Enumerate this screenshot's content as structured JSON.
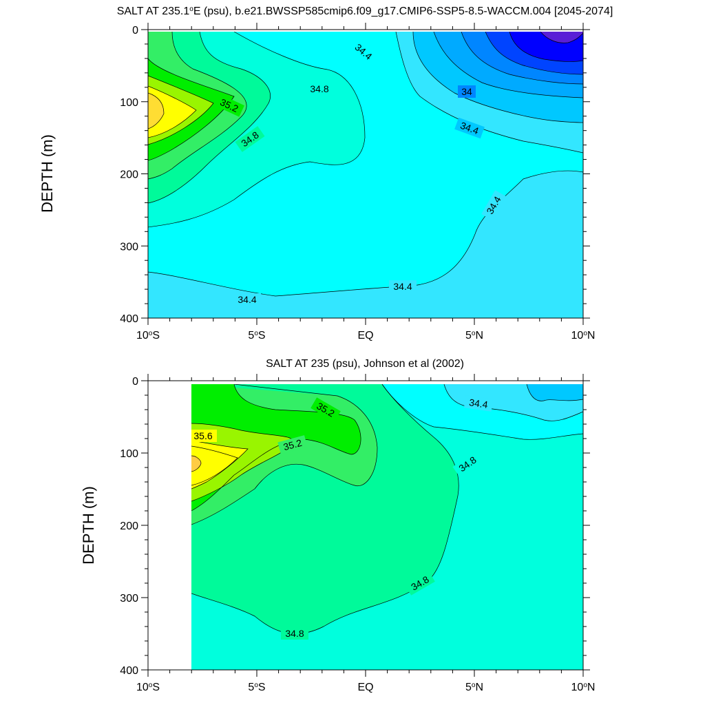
{
  "chart_data": [
    {
      "type": "contour",
      "title_html": "SALT AT 235.1°E (psu), b.e21.BWSSP585cmip6.f09_g17.CMIP6-SSP5-8.5-WACCM.004 [2045-2074]",
      "title_prefix": "SALT AT 235.1",
      "title_sup": "o",
      "title_suffix": "E (psu), b.e21.BWSSP585cmip6.f09_g17.CMIP6-SSP5-8.5-WACCM.004 [2045-2074]",
      "ylabel": "DEPTH (m)",
      "xlim": [
        -10,
        10
      ],
      "ylim": [
        0,
        400
      ],
      "x_ticks": [
        {
          "value": -10,
          "num": "10",
          "sup": "o",
          "hemi": "S"
        },
        {
          "value": -5,
          "num": "5",
          "sup": "o",
          "hemi": "S"
        },
        {
          "value": 0,
          "num": "EQ",
          "sup": "",
          "hemi": ""
        },
        {
          "value": 5,
          "num": "5",
          "sup": "o",
          "hemi": "N"
        },
        {
          "value": 10,
          "num": "10",
          "sup": "o",
          "hemi": "N"
        }
      ],
      "y_ticks": [
        "0",
        "100",
        "200",
        "300",
        "400"
      ],
      "contour_labels": [
        "34.4",
        "34.8",
        "35.2",
        "34.8",
        "34",
        "34.4",
        "34.4",
        "34.4",
        "34.4"
      ],
      "levels": [
        33.2,
        33.4,
        33.6,
        33.8,
        34.0,
        34.2,
        34.4,
        34.6,
        34.8,
        35.0,
        35.2,
        35.4,
        35.6,
        35.8
      ]
    },
    {
      "type": "contour",
      "title": "SALT AT 235 (psu), Johnson et al (2002)",
      "ylabel": "DEPTH (m)",
      "xlim": [
        -10,
        10
      ],
      "ylim": [
        0,
        400
      ],
      "x_ticks": [
        {
          "value": -10,
          "num": "10",
          "sup": "o",
          "hemi": "S"
        },
        {
          "value": -5,
          "num": "5",
          "sup": "o",
          "hemi": "S"
        },
        {
          "value": 0,
          "num": "EQ",
          "sup": "",
          "hemi": ""
        },
        {
          "value": 5,
          "num": "5",
          "sup": "o",
          "hemi": "N"
        },
        {
          "value": 10,
          "num": "10",
          "sup": "o",
          "hemi": "N"
        }
      ],
      "y_ticks": [
        "0",
        "100",
        "200",
        "300",
        "400"
      ],
      "contour_labels": [
        "35.2",
        "35.6",
        "35.2",
        "34.4",
        "34.8",
        "34.8",
        "34.8"
      ],
      "data_x_range": [
        -8,
        10
      ]
    }
  ],
  "colors": {
    "c_33_2": "#5a1fd6",
    "c_33_4": "#0000ff",
    "c_33_6": "#0044ff",
    "c_33_8": "#0086ff",
    "c_34_0": "#00aaff",
    "c_34_2": "#00c8ff",
    "c_34_4": "#33e6ff",
    "c_34_6": "#00ffff",
    "c_34_8": "#00ffdd",
    "c_35_0": "#00fa9a",
    "c_35_2": "#33ee66",
    "c_35_4": "#00ee00",
    "c_35_6": "#99f500",
    "c_35_8": "#ffff00",
    "c_36_0": "#ffdd33",
    "c_36_2": "#ffcc44"
  }
}
